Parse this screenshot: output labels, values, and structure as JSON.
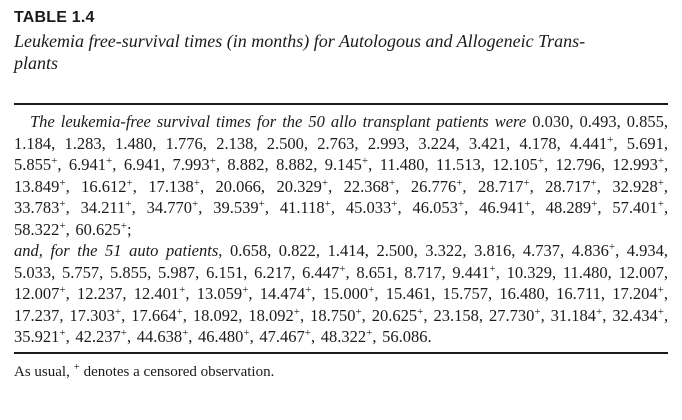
{
  "header": {
    "label": "TABLE 1.4",
    "caption_lines": [
      "Leukemia free-survival times (in months) for Autologous and Allogeneic Trans-",
      "plants"
    ]
  },
  "body": {
    "allo": {
      "intro": "The leukemia-free survival times for the 50 allo transplant patients were",
      "values": [
        "0.030",
        "0.493",
        "0.855",
        "1.184",
        "1.283",
        "1.480",
        "1.776",
        "2.138",
        "2.500",
        "2.763",
        "2.993",
        "3.224",
        "3.421",
        "4.178",
        "4.441+",
        "5.691",
        "5.855+",
        "6.941+",
        "6.941",
        "7.993+",
        "8.882",
        "8.882",
        "9.145+",
        "11.480",
        "11.513",
        "12.105+",
        "12.796",
        "12.993+",
        "13.849+",
        "16.612+",
        "17.138+",
        "20.066",
        "20.329+",
        "22.368+",
        "26.776+",
        "28.717+",
        "28.717+",
        "32.928+",
        "33.783+",
        "34.211+",
        "34.770+",
        "39.539+",
        "41.118+",
        "45.033+",
        "46.053+",
        "46.941+",
        "48.289+",
        "57.401+",
        "58.322+",
        "60.625+"
      ],
      "terminator": ";"
    },
    "auto": {
      "intro": "and, for the 51 auto patients,",
      "values": [
        "0.658",
        "0.822",
        "1.414",
        "2.500",
        "3.322",
        "3.816",
        "4.737",
        "4.836+",
        "4.934",
        "5.033",
        "5.757",
        "5.855",
        "5.987",
        "6.151",
        "6.217",
        "6.447+",
        "8.651",
        "8.717",
        "9.441+",
        "10.329",
        "11.480",
        "12.007",
        "12.007+",
        "12.237",
        "12.401+",
        "13.059+",
        "14.474+",
        "15.000+",
        "15.461",
        "15.757",
        "16.480",
        "16.711",
        "17.204+",
        "17.237",
        "17.303+",
        "17.664+",
        "18.092",
        "18.092+",
        "18.750+",
        "20.625+",
        "23.158",
        "27.730+",
        "31.184+",
        "32.434+",
        "35.921+",
        "42.237+",
        "44.638+",
        "46.480+",
        "47.467+",
        "48.322+",
        "56.086"
      ],
      "terminator": "."
    }
  },
  "footnote": {
    "prefix": "As usual,",
    "symbol": "+",
    "suffix": "denotes a censored observation."
  },
  "colors": {
    "text": "#1b1b1d",
    "background": "#ffffff",
    "rule": "#1b1b1d"
  }
}
